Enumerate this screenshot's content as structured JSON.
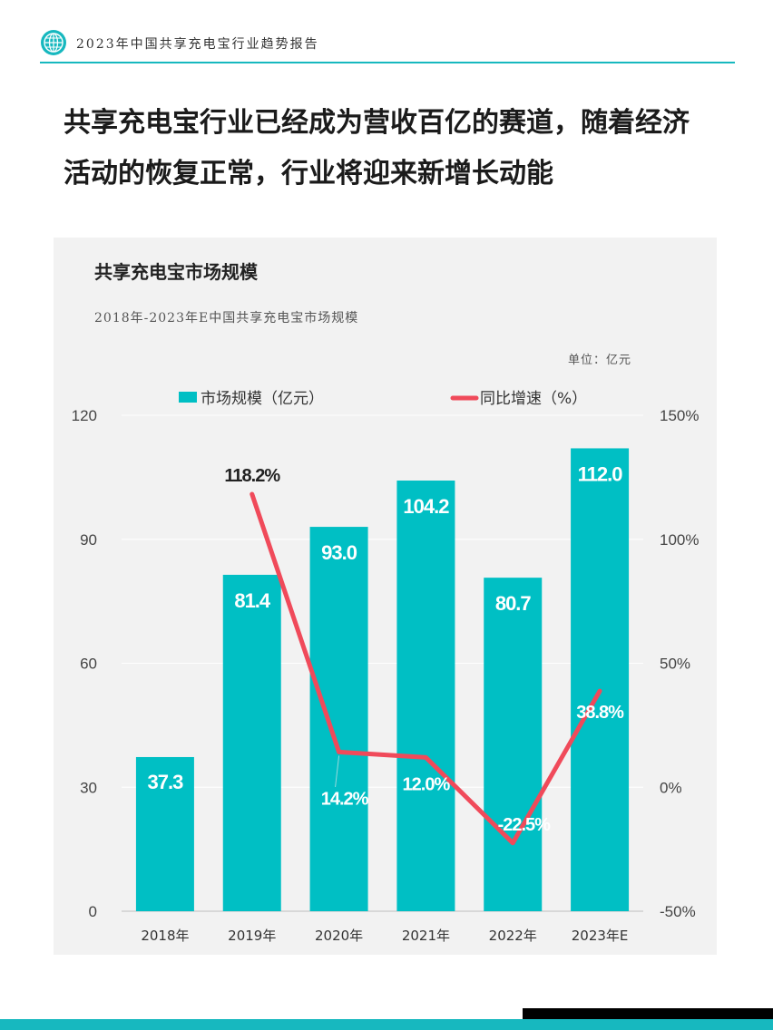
{
  "header": {
    "report_title": "2023年中国共享充电宝行业趋势报告"
  },
  "headline": {
    "line1": "共享充电宝行业已经成为营收百亿的赛道，随着经济",
    "line2": "活动的恢复正常，行业将迎来新增长动能"
  },
  "panel": {
    "title": "共享充电宝市场规模",
    "subtitle": "2018年-2023年E中国共享充电宝市场规模",
    "unit": "单位：亿元"
  },
  "colors": {
    "accent": "#17b8bf",
    "bar": "#00bfc4",
    "line": "#f04a5a",
    "panel_bg": "#f2f2f2"
  },
  "chart_data": {
    "type": "bar",
    "categories": [
      "2018年",
      "2019年",
      "2020年",
      "2021年",
      "2022年",
      "2023年E"
    ],
    "series": [
      {
        "name": "市场规模（亿元）",
        "type": "bar",
        "axis": "left",
        "values": [
          37.3,
          81.4,
          93.0,
          104.2,
          80.7,
          112.0
        ],
        "labels": [
          "37.3",
          "81.4",
          "93.0",
          "104.2",
          "80.7",
          "112.0"
        ]
      },
      {
        "name": "同比增速（%）",
        "type": "line",
        "axis": "right",
        "values": [
          null,
          118.2,
          14.2,
          12.0,
          -22.5,
          38.8
        ],
        "labels": [
          "",
          "118.2%",
          "14.2%",
          "12.0%",
          "-22.5%",
          "38.8%"
        ]
      }
    ],
    "left_axis": {
      "ylim": [
        0,
        120
      ],
      "ticks": [
        "0",
        "30",
        "60",
        "90",
        "120"
      ]
    },
    "right_axis": {
      "ylim": [
        -50,
        150
      ],
      "ticks": [
        "-50%",
        "0%",
        "50%",
        "100%",
        "150%"
      ]
    },
    "legend_position": "top-center",
    "grid": true
  }
}
